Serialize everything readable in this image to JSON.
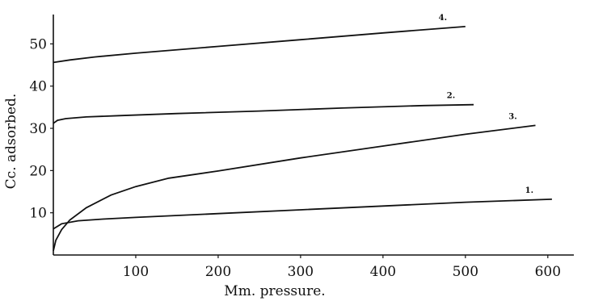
{
  "chart_data": {
    "type": "line",
    "title": "",
    "xlabel": "Mm. pressure.",
    "ylabel": "Cc. adsorbed.",
    "xlim": [
      0,
      610
    ],
    "ylim": [
      0,
      56
    ],
    "xticks": [
      100,
      200,
      300,
      400,
      500,
      600
    ],
    "yticks": [
      10,
      20,
      30,
      40,
      50
    ],
    "grid": false,
    "legend": "none",
    "series": [
      {
        "name": "1.",
        "x": [
          0,
          10,
          30,
          60,
          100,
          200,
          300,
          400,
          500,
          605
        ],
        "y": [
          6.2,
          7.4,
          8.1,
          8.5,
          8.9,
          9.8,
          10.7,
          11.6,
          12.5,
          13.2
        ]
      },
      {
        "name": "2.",
        "x": [
          0,
          5,
          15,
          40,
          80,
          150,
          250,
          350,
          450,
          510
        ],
        "y": [
          31.2,
          31.9,
          32.3,
          32.7,
          33.0,
          33.5,
          34.1,
          34.8,
          35.4,
          35.6
        ]
      },
      {
        "name": "3.",
        "x": [
          0,
          3,
          10,
          20,
          40,
          70,
          100,
          140,
          200,
          300,
          400,
          500,
          585
        ],
        "y": [
          1.0,
          3.5,
          6.0,
          8.3,
          11.2,
          14.2,
          16.2,
          18.2,
          19.9,
          23.0,
          25.8,
          28.6,
          30.7
        ]
      },
      {
        "name": "4.",
        "x": [
          0,
          20,
          50,
          100,
          200,
          300,
          400,
          500
        ],
        "y": [
          45.6,
          46.2,
          46.9,
          47.8,
          49.4,
          51.0,
          52.6,
          54.1
        ]
      }
    ]
  }
}
